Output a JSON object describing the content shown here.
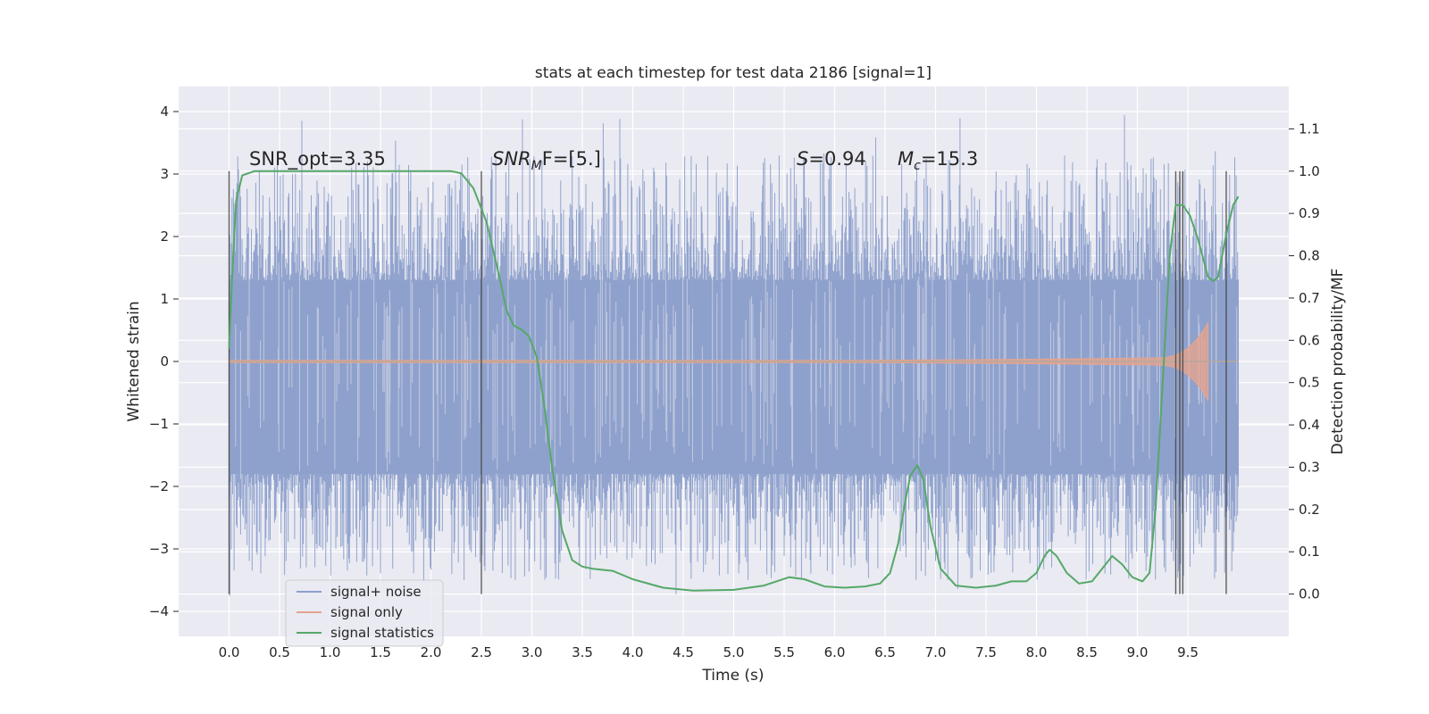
{
  "chart_data": {
    "type": "line",
    "title": "stats at each timestep for test data 2186 [signal=1]",
    "xlabel": "Time (s)",
    "ylabel": "Whitened strain",
    "y2label": "Detection probability/MF",
    "xlim": [
      -0.5,
      10.5
    ],
    "ylim": [
      -4.4,
      4.4
    ],
    "y2lim": [
      -0.1,
      1.2
    ],
    "xticks": [
      0.0,
      0.5,
      1.0,
      1.5,
      2.0,
      2.5,
      3.0,
      3.5,
      4.0,
      4.5,
      5.0,
      5.5,
      6.0,
      6.5,
      7.0,
      7.5,
      8.0,
      8.5,
      9.0,
      9.5
    ],
    "xtick_labels": [
      "0.0",
      "0.5",
      "1.0",
      "1.5",
      "2.0",
      "2.5",
      "3.0",
      "3.5",
      "4.0",
      "4.5",
      "5.0",
      "5.5",
      "6.0",
      "6.5",
      "7.0",
      "7.5",
      "8.0",
      "8.5",
      "9.0",
      "9.5"
    ],
    "yticks": [
      -4,
      -3,
      -2,
      -1,
      0,
      1,
      2,
      3,
      4
    ],
    "ytick_labels": [
      "−4",
      "−3",
      "−2",
      "−1",
      "0",
      "1",
      "2",
      "3",
      "4"
    ],
    "y2ticks": [
      0.0,
      0.1,
      0.2,
      0.3,
      0.4,
      0.5,
      0.6,
      0.7,
      0.8,
      0.9,
      1.0,
      1.1
    ],
    "y2tick_labels": [
      "0.0",
      "0.1",
      "0.2",
      "0.3",
      "0.4",
      "0.5",
      "0.6",
      "0.7",
      "0.8",
      "0.9",
      "1.0",
      "1.1"
    ],
    "grid": true,
    "legend_placement": "lower-left",
    "annotations": [
      {
        "text": "SNR_opt=3.35",
        "x": 0.2
      },
      {
        "text_italic": "SNR",
        "sub": "M",
        "text": "F=[5.]",
        "x": 2.6
      },
      {
        "text_italic": "S",
        "text": "=0.94",
        "x": 5.6
      },
      {
        "text_italic": "M",
        "sub": "c",
        "text": "=15.3",
        "x": 6.6
      }
    ],
    "series": [
      {
        "name": "signal+ noise",
        "color": "#8da0cb",
        "style": "dense noise, t 0.0–10.0, amplitude ~±1.3 core, spikes to ~±4"
      },
      {
        "name": "signal only",
        "color": "#e5a48d",
        "style": "chirp, t 0.0–9.7, max amplitude ~0.65 at 9.7"
      },
      {
        "name": "signal statistics",
        "color": "#55a868",
        "axis": "right",
        "points": [
          [
            0.0,
            0.58
          ],
          [
            0.03,
            0.75
          ],
          [
            0.07,
            0.93
          ],
          [
            0.13,
            0.99
          ],
          [
            0.25,
            1.0
          ],
          [
            0.5,
            1.0
          ],
          [
            1.0,
            1.0
          ],
          [
            1.5,
            1.0
          ],
          [
            2.0,
            1.0
          ],
          [
            2.2,
            1.0
          ],
          [
            2.3,
            0.995
          ],
          [
            2.42,
            0.96
          ],
          [
            2.55,
            0.88
          ],
          [
            2.65,
            0.78
          ],
          [
            2.75,
            0.67
          ],
          [
            2.82,
            0.635
          ],
          [
            2.9,
            0.625
          ],
          [
            2.97,
            0.61
          ],
          [
            3.05,
            0.56
          ],
          [
            3.12,
            0.45
          ],
          [
            3.2,
            0.3
          ],
          [
            3.3,
            0.15
          ],
          [
            3.4,
            0.08
          ],
          [
            3.5,
            0.065
          ],
          [
            3.6,
            0.06
          ],
          [
            3.8,
            0.055
          ],
          [
            4.0,
            0.035
          ],
          [
            4.3,
            0.015
          ],
          [
            4.6,
            0.008
          ],
          [
            5.0,
            0.01
          ],
          [
            5.3,
            0.02
          ],
          [
            5.55,
            0.04
          ],
          [
            5.7,
            0.035
          ],
          [
            5.9,
            0.018
          ],
          [
            6.1,
            0.015
          ],
          [
            6.3,
            0.018
          ],
          [
            6.45,
            0.025
          ],
          [
            6.55,
            0.05
          ],
          [
            6.63,
            0.12
          ],
          [
            6.7,
            0.22
          ],
          [
            6.75,
            0.28
          ],
          [
            6.82,
            0.305
          ],
          [
            6.88,
            0.27
          ],
          [
            6.95,
            0.16
          ],
          [
            7.05,
            0.06
          ],
          [
            7.2,
            0.02
          ],
          [
            7.4,
            0.015
          ],
          [
            7.6,
            0.02
          ],
          [
            7.75,
            0.03
          ],
          [
            7.9,
            0.03
          ],
          [
            8.0,
            0.05
          ],
          [
            8.08,
            0.09
          ],
          [
            8.13,
            0.105
          ],
          [
            8.2,
            0.09
          ],
          [
            8.3,
            0.05
          ],
          [
            8.42,
            0.025
          ],
          [
            8.55,
            0.03
          ],
          [
            8.65,
            0.06
          ],
          [
            8.75,
            0.09
          ],
          [
            8.85,
            0.07
          ],
          [
            8.95,
            0.04
          ],
          [
            9.05,
            0.03
          ],
          [
            9.12,
            0.05
          ],
          [
            9.18,
            0.2
          ],
          [
            9.25,
            0.5
          ],
          [
            9.32,
            0.8
          ],
          [
            9.38,
            0.92
          ],
          [
            9.45,
            0.92
          ],
          [
            9.52,
            0.895
          ],
          [
            9.6,
            0.84
          ],
          [
            9.7,
            0.75
          ],
          [
            9.75,
            0.74
          ],
          [
            9.8,
            0.75
          ],
          [
            9.88,
            0.85
          ],
          [
            9.95,
            0.92
          ],
          [
            10.0,
            0.94
          ]
        ]
      }
    ],
    "vlines_x": [
      0.0,
      2.5,
      9.38,
      9.42,
      9.45,
      9.88
    ]
  }
}
